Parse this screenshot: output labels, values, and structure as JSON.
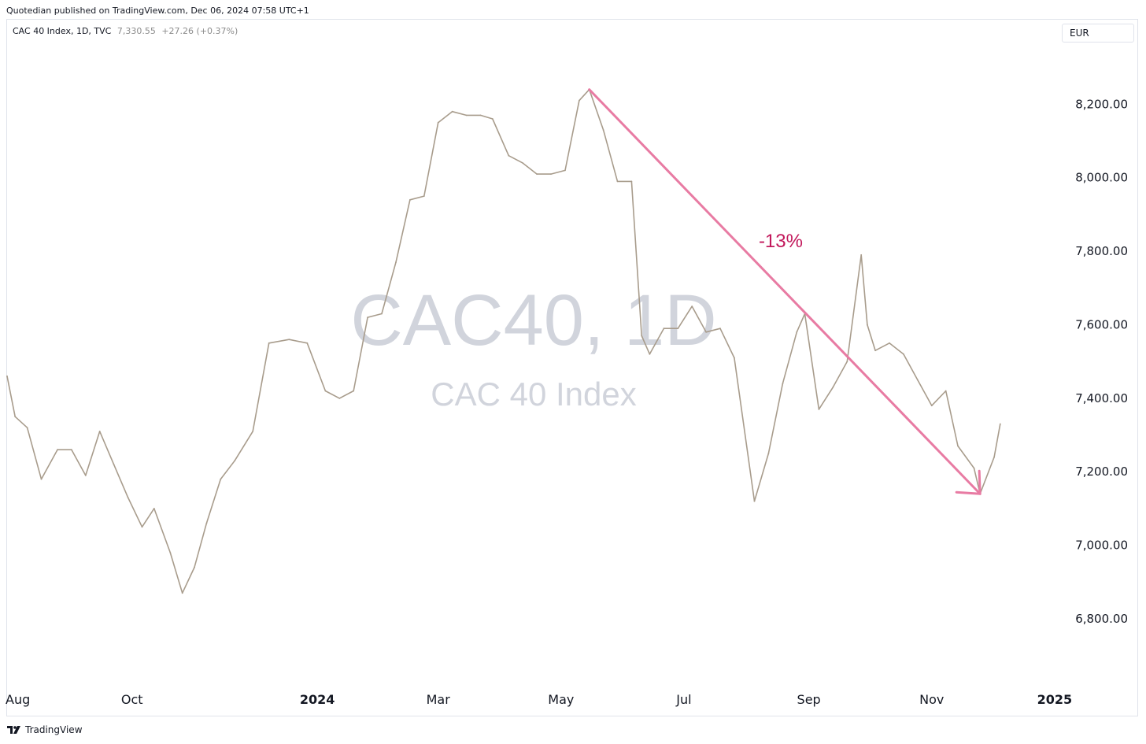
{
  "header": {
    "publisher_line": "Quotedian published on TradingView.com, Dec 06, 2024 07:58 UTC+1"
  },
  "legend": {
    "symbol_line": "CAC 40 Index, 1D, TVC",
    "last_price": "7,330.55",
    "change": "+27.26 (+0.37%)"
  },
  "currency_selector": {
    "label": "EUR"
  },
  "watermark": {
    "ticker": "CAC40, 1D",
    "name": "CAC 40 Index"
  },
  "annotation": {
    "label": "-13%",
    "from": {
      "date": "2024-05-15",
      "value": 8240
    },
    "to": {
      "date": "2024-11-25",
      "value": 7140
    },
    "color": "#e87ba3",
    "label_color": "#c2185b"
  },
  "footer": {
    "brand": "TradingView",
    "logo_icon": "tradingview-logo-icon"
  },
  "colors": {
    "price_line": "#a89c8c",
    "axis_text": "#131722",
    "watermark": "#d1d4dc"
  },
  "chart_data": {
    "type": "line",
    "series": [
      {
        "x": [
          "2023-07-31",
          "2023-08-04",
          "2023-08-10",
          "2023-08-17",
          "2023-08-25",
          "2023-09-01",
          "2023-09-08",
          "2023-09-15",
          "2023-09-22",
          "2023-09-29",
          "2023-10-06",
          "2023-10-12",
          "2023-10-20",
          "2023-10-26",
          "2023-11-01",
          "2023-11-07",
          "2023-11-14",
          "2023-11-21",
          "2023-11-30",
          "2023-12-08",
          "2023-12-18",
          "2023-12-27",
          "2024-01-05",
          "2024-01-12",
          "2024-01-19",
          "2024-01-26",
          "2024-02-02",
          "2024-02-09",
          "2024-02-16",
          "2024-02-23",
          "2024-03-01",
          "2024-03-08",
          "2024-03-15",
          "2024-03-22",
          "2024-03-28",
          "2024-04-05",
          "2024-04-12",
          "2024-04-19",
          "2024-04-26",
          "2024-05-03",
          "2024-05-10",
          "2024-05-15",
          "2024-05-22",
          "2024-05-29",
          "2024-06-05",
          "2024-06-10",
          "2024-06-14",
          "2024-06-21",
          "2024-06-28",
          "2024-07-05",
          "2024-07-12",
          "2024-07-19",
          "2024-07-26",
          "2024-08-05",
          "2024-08-12",
          "2024-08-19",
          "2024-08-26",
          "2024-08-30",
          "2024-09-06",
          "2024-09-13",
          "2024-09-20",
          "2024-09-27",
          "2024-09-30",
          "2024-10-04",
          "2024-10-11",
          "2024-10-18",
          "2024-10-25",
          "2024-11-01",
          "2024-11-08",
          "2024-11-14",
          "2024-11-22",
          "2024-11-25",
          "2024-12-02",
          "2024-12-05"
        ],
        "values": [
          7460,
          7350,
          7320,
          7180,
          7260,
          7260,
          7190,
          7310,
          7220,
          7130,
          7050,
          7100,
          6980,
          6870,
          6940,
          7060,
          7180,
          7230,
          7310,
          7550,
          7560,
          7550,
          7420,
          7400,
          7420,
          7620,
          7630,
          7770,
          7940,
          7950,
          8150,
          8180,
          8170,
          8170,
          8160,
          8060,
          8040,
          8010,
          8010,
          8020,
          8210,
          8240,
          8130,
          7990,
          7990,
          7570,
          7520,
          7590,
          7590,
          7650,
          7580,
          7590,
          7510,
          7120,
          7250,
          7440,
          7580,
          7630,
          7370,
          7430,
          7500,
          7790,
          7600,
          7530,
          7550,
          7520,
          7450,
          7380,
          7420,
          7270,
          7210,
          7140,
          7240,
          7330
        ]
      }
    ],
    "y_ticks": [
      "6,800.00",
      "7,000.00",
      "7,200.00",
      "7,400.00",
      "7,600.00",
      "7,800.00",
      "8,000.00",
      "8,200.00"
    ],
    "x_ticks": [
      "Aug",
      "Oct",
      "2024",
      "Mar",
      "May",
      "Jul",
      "Sep",
      "Nov",
      "2025"
    ],
    "ylim": [
      6620,
      8430
    ],
    "xlim": [
      "2023-07-31",
      "2025-01-03"
    ],
    "y_scale": "linear",
    "y_axis_position": "right",
    "grid": false,
    "legend_placement": "top-left"
  }
}
